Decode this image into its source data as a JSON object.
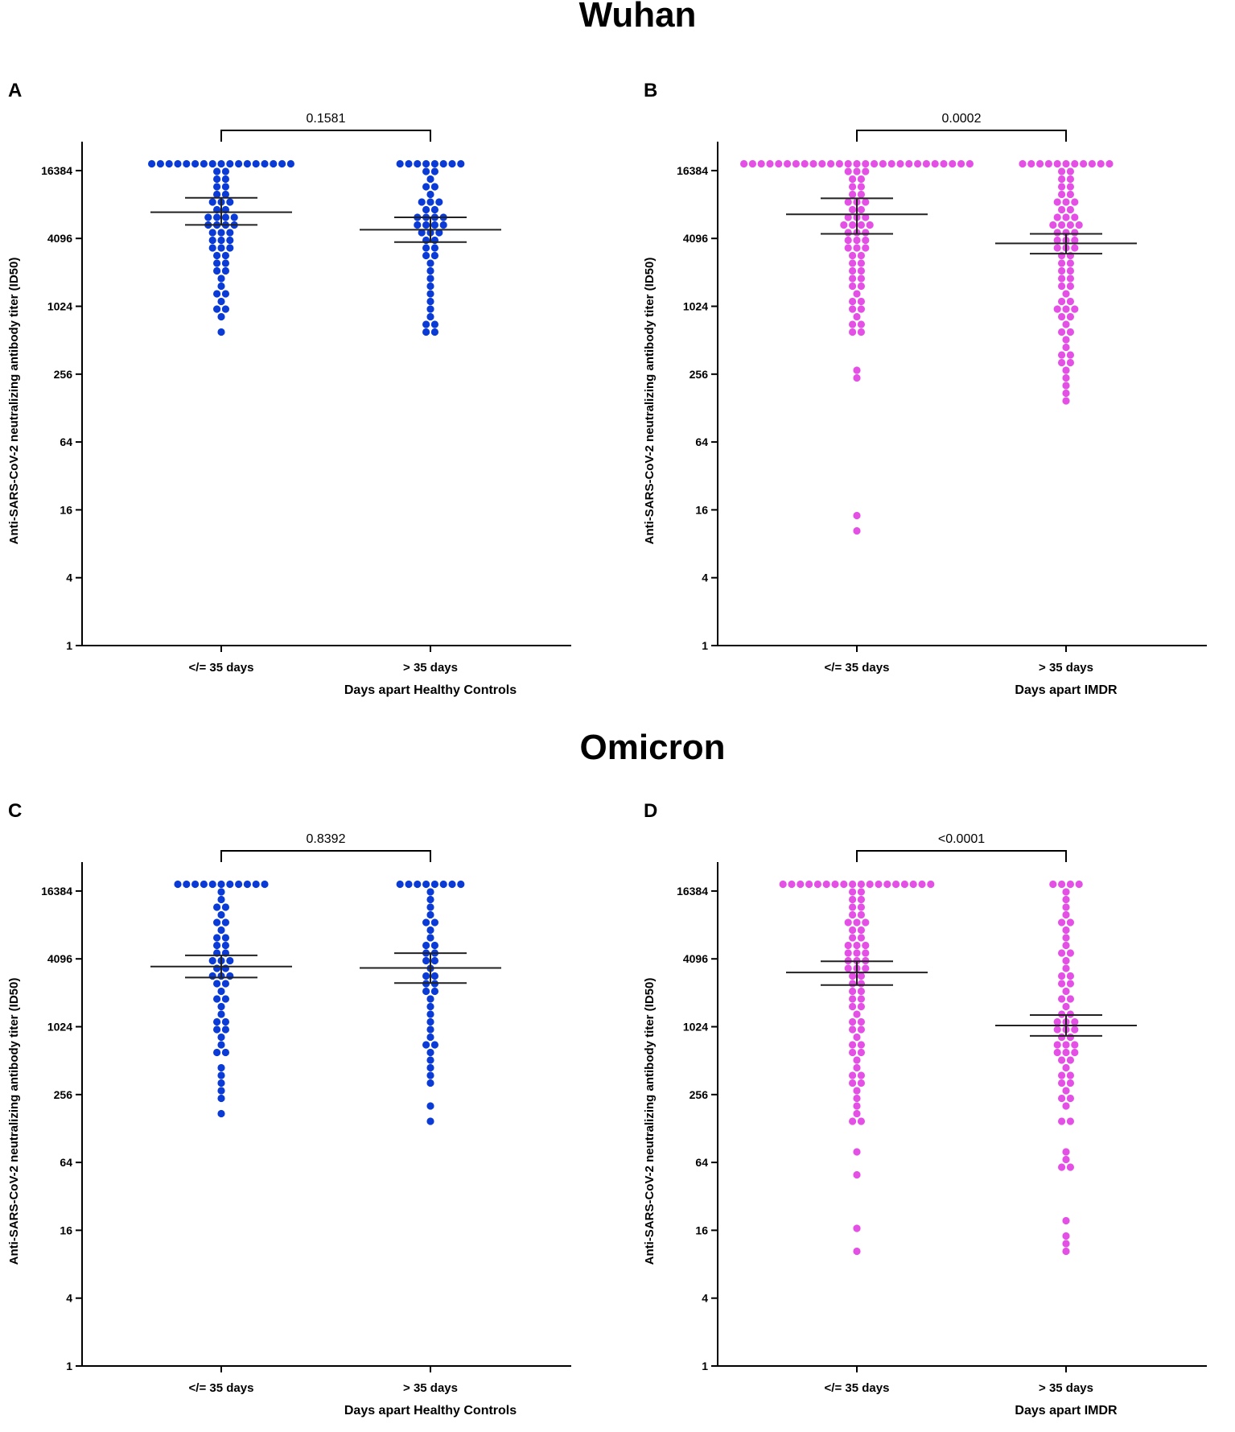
{
  "titles": {
    "top": "Wuhan",
    "bottom": "Omicron"
  },
  "colors": {
    "healthy": "#0b3bd6",
    "imdr": "#e44fe6",
    "axis": "#000000",
    "bar": "#222222"
  },
  "chart_data": [
    {
      "type": "scatter",
      "panel": "A",
      "y_scale": "log2",
      "ylim": [
        1,
        22000
      ],
      "yticks": [
        1,
        4,
        16,
        64,
        256,
        1024,
        4096,
        16384
      ],
      "ylabel": "Anti-SARS-CoV-2 neutralizing antibody titer (ID50)",
      "xlabel": "Days apart Healthy Controls",
      "categories": [
        "</= 35 days",
        "> 35 days"
      ],
      "p_value": "0.1581",
      "color_key": "healthy",
      "series": [
        {
          "name": "</= 35 days",
          "mean": 7000,
          "ci": [
            5400,
            9400
          ],
          "values": [
            20000,
            20000,
            20000,
            20000,
            20000,
            20000,
            20000,
            20000,
            20000,
            20000,
            20000,
            20000,
            20000,
            20000,
            20000,
            20000,
            18500,
            17000,
            15500,
            14000,
            13000,
            12000,
            11000,
            10000,
            9500,
            9000,
            8500,
            8000,
            7500,
            7000,
            6800,
            6500,
            6200,
            6000,
            5700,
            5400,
            5200,
            5000,
            4800,
            4600,
            4400,
            4200,
            4000,
            3800,
            3600,
            3400,
            3200,
            3000,
            2800,
            2600,
            2400,
            2200,
            2000,
            1800,
            1600,
            1400,
            1250,
            1100,
            1000,
            900,
            780,
            640
          ]
        },
        {
          "name": "> 35 days",
          "mean": 4900,
          "ci": [
            3800,
            6300
          ],
          "values": [
            20000,
            20000,
            20000,
            20000,
            20000,
            20000,
            20000,
            19000,
            17000,
            15500,
            14000,
            12500,
            11000,
            10000,
            9000,
            8500,
            8000,
            7500,
            7000,
            6800,
            6500,
            6200,
            6000,
            5700,
            5400,
            5200,
            5000,
            4800,
            4600,
            4400,
            4200,
            3900,
            3600,
            3300,
            3000,
            2700,
            2400,
            2100,
            1800,
            1550,
            1300,
            1100,
            1000,
            880,
            760,
            690,
            620,
            560
          ]
        }
      ]
    },
    {
      "type": "scatter",
      "panel": "B",
      "y_scale": "log2",
      "ylim": [
        1,
        22000
      ],
      "yticks": [
        1,
        4,
        16,
        64,
        256,
        1024,
        4096,
        16384
      ],
      "ylabel": "Anti-SARS-CoV-2 neutralizing antibody titer (ID50)",
      "xlabel": "Days apart IMDR",
      "categories": [
        "</= 35 days",
        "> 35 days"
      ],
      "p_value": "0.0002",
      "color_key": "imdr",
      "series": [
        {
          "name": "</= 35 days",
          "mean": 6700,
          "ci": [
            4500,
            9300
          ],
          "values": [
            20000,
            20000,
            20000,
            20000,
            20000,
            20000,
            20000,
            20000,
            20000,
            20000,
            20000,
            20000,
            20000,
            20000,
            20000,
            20000,
            20000,
            20000,
            20000,
            20000,
            20000,
            20000,
            20000,
            20000,
            20000,
            20000,
            18000,
            17000,
            16000,
            15000,
            14000,
            13000,
            12000,
            11000,
            10000,
            9500,
            9000,
            8500,
            8000,
            7500,
            7000,
            6700,
            6400,
            6100,
            5800,
            5500,
            5200,
            5000,
            4800,
            4600,
            4400,
            4200,
            4000,
            3800,
            3600,
            3400,
            3200,
            3000,
            2800,
            2600,
            2400,
            2200,
            2050,
            1900,
            1750,
            1600,
            1450,
            1300,
            1200,
            1100,
            1000,
            900,
            820,
            750,
            680,
            620,
            560,
            280,
            255,
            14,
            10
          ]
        },
        {
          "name": "> 35 days",
          "mean": 3700,
          "ci": [
            3000,
            4500
          ],
          "values": [
            20000,
            20000,
            20000,
            20000,
            20000,
            20000,
            20000,
            20000,
            20000,
            20000,
            18000,
            16000,
            15000,
            14000,
            13000,
            12000,
            11000,
            10000,
            9500,
            9000,
            8500,
            8000,
            7500,
            7000,
            6700,
            6400,
            6100,
            5800,
            5500,
            5200,
            5000,
            4800,
            4600,
            4400,
            4200,
            4000,
            3800,
            3600,
            3400,
            3200,
            3000,
            2800,
            2600,
            2400,
            2200,
            2050,
            1900,
            1750,
            1600,
            1450,
            1300,
            1200,
            1100,
            1000,
            950,
            900,
            850,
            800,
            720,
            640,
            560,
            480,
            440,
            400,
            360,
            330,
            300,
            270,
            240,
            210,
            180,
            150
          ]
        }
      ]
    },
    {
      "type": "scatter",
      "panel": "C",
      "y_scale": "log2",
      "ylim": [
        1,
        22000
      ],
      "yticks": [
        1,
        4,
        16,
        64,
        256,
        1024,
        4096,
        16384
      ],
      "ylabel": "Anti-SARS-CoV-2 neutralizing antibody titer (ID50)",
      "xlabel": "Days apart Healthy Controls",
      "categories": [
        "</= 35 days",
        "> 35 days"
      ],
      "p_value": "0.8392",
      "color_key": "healthy",
      "series": [
        {
          "name": "</= 35 days",
          "mean": 3500,
          "ci": [
            2800,
            4400
          ],
          "values": [
            20000,
            20000,
            20000,
            20000,
            20000,
            20000,
            20000,
            20000,
            20000,
            20000,
            18000,
            15500,
            14000,
            12500,
            11000,
            10000,
            9000,
            8500,
            7500,
            6800,
            6200,
            5600,
            5200,
            4800,
            4400,
            4100,
            3900,
            3700,
            3500,
            3300,
            3100,
            2900,
            2700,
            2500,
            2300,
            2100,
            1900,
            1700,
            1500,
            1300,
            1100,
            1050,
            1000,
            950,
            880,
            760,
            640,
            560,
            460,
            400,
            330,
            270,
            230,
            170
          ]
        },
        {
          "name": "> 35 days",
          "mean": 3400,
          "ci": [
            2500,
            4600
          ],
          "values": [
            20000,
            20000,
            20000,
            20000,
            20000,
            20000,
            20000,
            18000,
            15500,
            13500,
            11500,
            10000,
            9000,
            8000,
            7000,
            6400,
            5800,
            5200,
            4700,
            4300,
            4000,
            3700,
            3400,
            3100,
            2800,
            2600,
            2400,
            2200,
            2000,
            1800,
            1600,
            1400,
            1200,
            1000,
            880,
            760,
            680,
            600,
            520,
            430,
            360,
            300,
            210,
            160
          ]
        }
      ]
    },
    {
      "type": "scatter",
      "panel": "D",
      "y_scale": "log2",
      "ylim": [
        1,
        22000
      ],
      "yticks": [
        1,
        4,
        16,
        64,
        256,
        1024,
        4096,
        16384
      ],
      "ylabel": "Anti-SARS-CoV-2 neutralizing antibody titer (ID50)",
      "xlabel": "Days apart IMDR",
      "categories": [
        "</= 35 days",
        "> 35 days"
      ],
      "p_value": "<0.0001",
      "color_key": "imdr",
      "series": [
        {
          "name": "</= 35 days",
          "mean": 3100,
          "ci": [
            2400,
            3900
          ],
          "values": [
            20000,
            20000,
            20000,
            20000,
            20000,
            20000,
            20000,
            20000,
            20000,
            20000,
            20000,
            20000,
            20000,
            20000,
            20000,
            20000,
            20000,
            18000,
            16500,
            15000,
            14000,
            13000,
            12000,
            11000,
            10000,
            9500,
            9000,
            8500,
            8000,
            7500,
            7000,
            6600,
            6200,
            5800,
            5500,
            5200,
            4900,
            4600,
            4400,
            4200,
            4000,
            3800,
            3600,
            3400,
            3200,
            3000,
            2800,
            2600,
            2400,
            2200,
            2050,
            1900,
            1750,
            1600,
            1450,
            1300,
            1200,
            1100,
            1000,
            900,
            820,
            750,
            680,
            620,
            560,
            500,
            440,
            400,
            360,
            330,
            300,
            270,
            240,
            200,
            180,
            160,
            140,
            80,
            46,
            17,
            10
          ]
        },
        {
          "name": "> 35 days",
          "mean": 1050,
          "ci": [
            850,
            1300
          ],
          "values": [
            20000,
            20000,
            20000,
            18000,
            16000,
            14000,
            12000,
            10500,
            9000,
            8000,
            7000,
            6200,
            5500,
            4800,
            4300,
            3900,
            3500,
            3100,
            2800,
            2500,
            2300,
            2100,
            1900,
            1700,
            1550,
            1400,
            1300,
            1200,
            1100,
            1050,
            1000,
            950,
            900,
            850,
            800,
            760,
            720,
            680,
            640,
            600,
            560,
            520,
            480,
            440,
            400,
            370,
            340,
            310,
            280,
            250,
            220,
            190,
            160,
            140,
            80,
            70,
            62,
            56,
            18,
            14,
            12,
            10
          ]
        }
      ]
    }
  ]
}
